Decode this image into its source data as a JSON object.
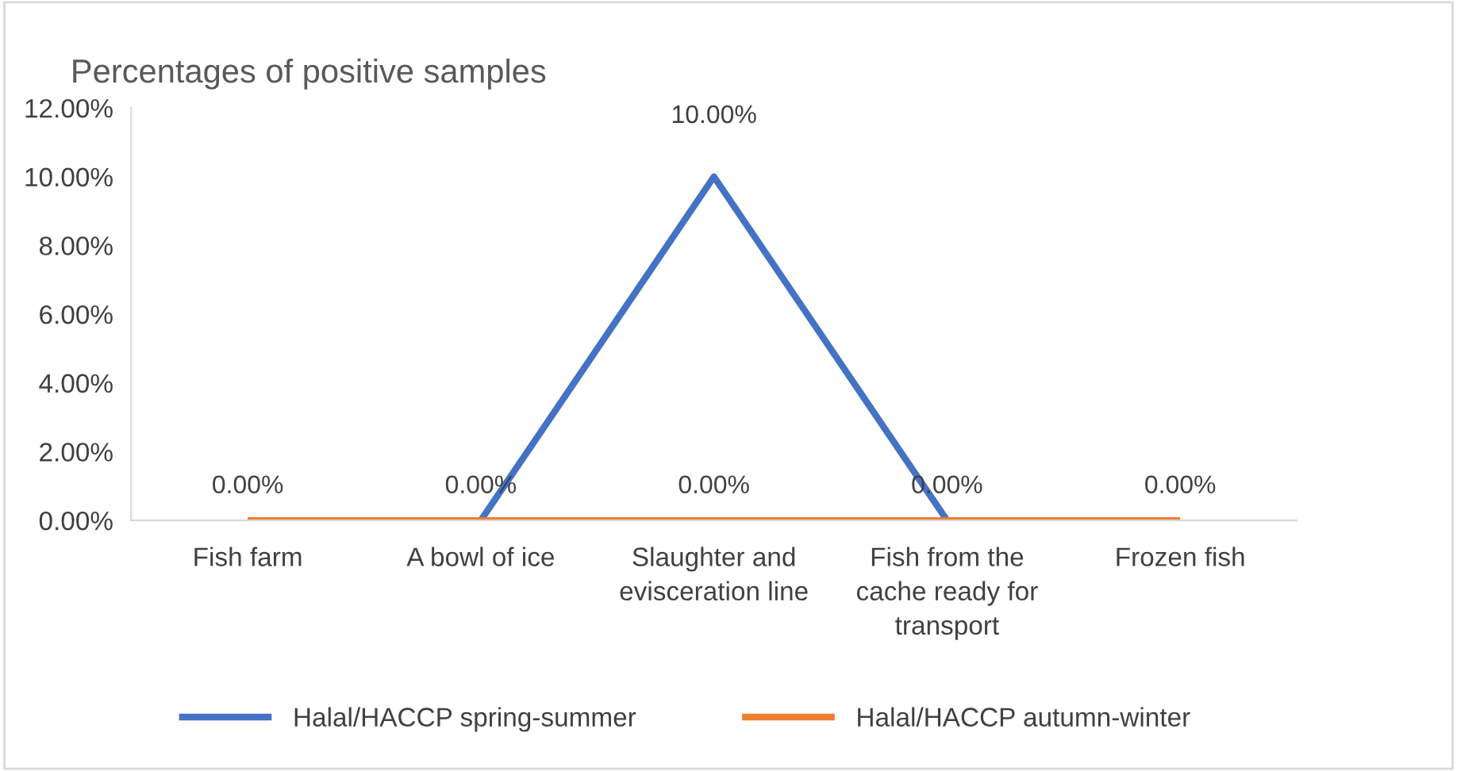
{
  "chart_data": {
    "type": "line",
    "title": "Percentages of positive samples",
    "categories": [
      "Fish farm",
      "A bowl of ice",
      "Slaughter and\nevisceration line",
      "Fish from the\ncache ready for\ntransport",
      "Frozen fish"
    ],
    "series": [
      {
        "name": "Halal/HACCP spring-summer",
        "color": "#4472c4",
        "values": [
          null,
          0,
          10,
          0,
          null
        ],
        "value_labels": [
          null,
          null,
          "10.00%",
          null,
          null
        ]
      },
      {
        "name": "Halal/HACCP autumn-winter",
        "color": "#ed7d31",
        "values": [
          0,
          0,
          0,
          0,
          0
        ],
        "value_labels": [
          "0.00%",
          "0.00%",
          "0.00%",
          "0.00%",
          "0.00%"
        ]
      }
    ],
    "ylim": [
      0,
      12
    ],
    "yticks": [
      {
        "value": 0,
        "label": "0.00%"
      },
      {
        "value": 2,
        "label": "2.00%"
      },
      {
        "value": 4,
        "label": "4.00%"
      },
      {
        "value": 6,
        "label": "6.00%"
      },
      {
        "value": 8,
        "label": "8.00%"
      },
      {
        "value": 10,
        "label": "10.00%"
      },
      {
        "value": 12,
        "label": "12.00%"
      }
    ],
    "grid": false,
    "legend": "bottom",
    "marker": "none",
    "line_style": "solid"
  }
}
